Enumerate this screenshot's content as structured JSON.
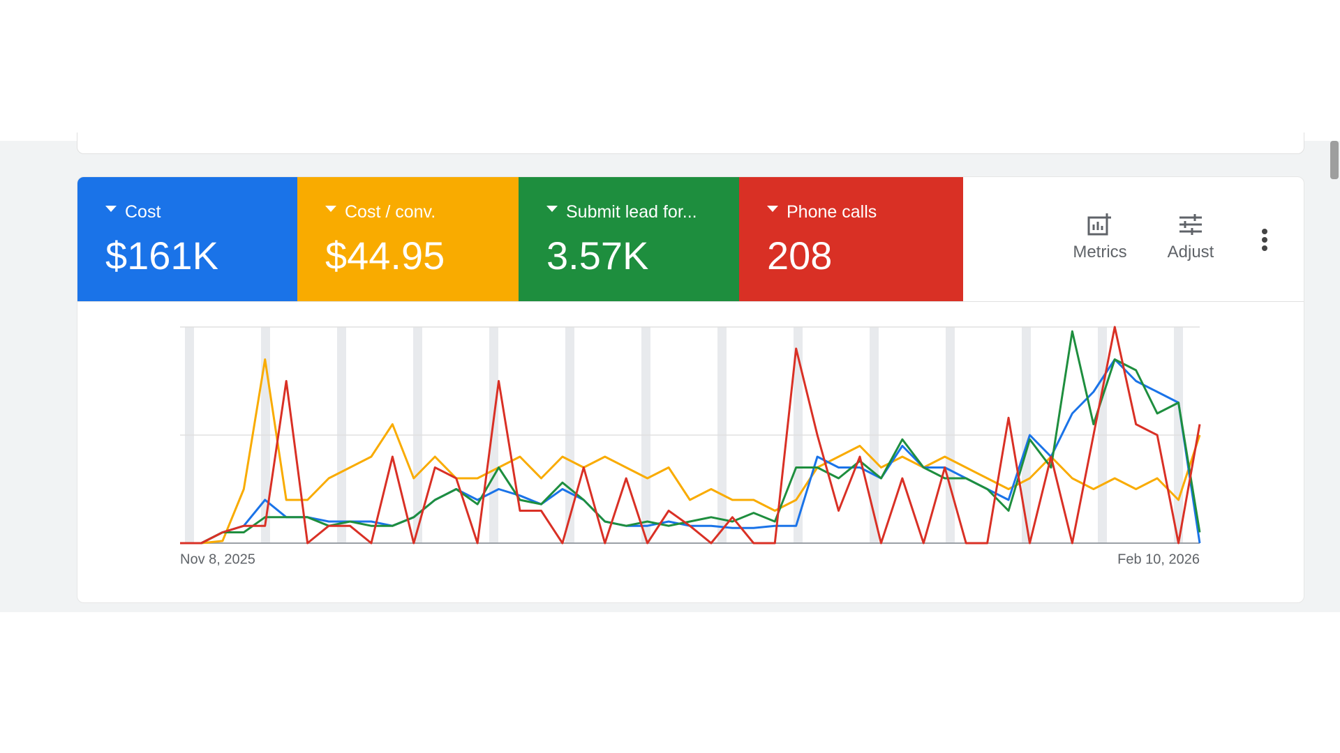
{
  "chart_data": {
    "type": "line",
    "categories": [
      "Nov 8, 2025",
      null,
      null,
      null,
      null,
      null,
      null,
      null,
      null,
      null,
      null,
      null,
      null,
      null,
      null,
      null,
      null,
      null,
      null,
      null,
      null,
      null,
      null,
      null,
      null,
      null,
      null,
      null,
      null,
      null,
      null,
      null,
      null,
      null,
      null,
      null,
      null,
      null,
      null,
      null,
      null,
      null,
      null,
      null,
      null,
      null,
      null,
      null,
      "Feb 10, 2026"
    ],
    "ylim": [
      0,
      100
    ],
    "series": [
      {
        "name": "Cost",
        "summary": "$161K",
        "color": "#1a73e8",
        "values": [
          0,
          0,
          5,
          8,
          20,
          12,
          12,
          10,
          10,
          10,
          8,
          12,
          20,
          25,
          20,
          25,
          22,
          18,
          25,
          20,
          10,
          8,
          8,
          10,
          8,
          8,
          7,
          7,
          8,
          8,
          40,
          35,
          35,
          30,
          45,
          35,
          35,
          30,
          25,
          20,
          50,
          40,
          60,
          70,
          85,
          75,
          70,
          65,
          0
        ]
      },
      {
        "name": "Cost / conv.",
        "summary": "$44.95",
        "color": "#f9ab00",
        "values": [
          0,
          0,
          1,
          25,
          85,
          20,
          20,
          30,
          35,
          40,
          55,
          30,
          40,
          30,
          30,
          35,
          40,
          30,
          40,
          35,
          40,
          35,
          30,
          35,
          20,
          25,
          20,
          20,
          15,
          20,
          35,
          40,
          45,
          35,
          40,
          35,
          40,
          35,
          30,
          25,
          30,
          40,
          30,
          25,
          30,
          25,
          30,
          20,
          50
        ]
      },
      {
        "name": "Submit lead for...",
        "summary": "3.57K",
        "color": "#1e8e3e",
        "values": [
          0,
          0,
          5,
          5,
          12,
          12,
          12,
          8,
          10,
          8,
          8,
          12,
          20,
          25,
          18,
          35,
          20,
          18,
          28,
          20,
          10,
          8,
          10,
          8,
          10,
          12,
          10,
          14,
          10,
          35,
          35,
          30,
          38,
          30,
          48,
          35,
          30,
          30,
          25,
          15,
          48,
          35,
          98,
          55,
          85,
          80,
          60,
          65,
          5
        ]
      },
      {
        "name": "Phone calls",
        "summary": "208",
        "color": "#d93025",
        "values": [
          0,
          0,
          5,
          8,
          8,
          75,
          0,
          8,
          8,
          0,
          40,
          0,
          35,
          30,
          0,
          75,
          15,
          15,
          0,
          35,
          0,
          30,
          0,
          15,
          8,
          0,
          12,
          0,
          0,
          90,
          50,
          15,
          40,
          0,
          30,
          0,
          35,
          0,
          0,
          58,
          0,
          40,
          0,
          50,
          100,
          55,
          50,
          0,
          55
        ]
      }
    ]
  },
  "toolbar": {
    "buttons": [
      "Metrics",
      "Adjust"
    ]
  }
}
